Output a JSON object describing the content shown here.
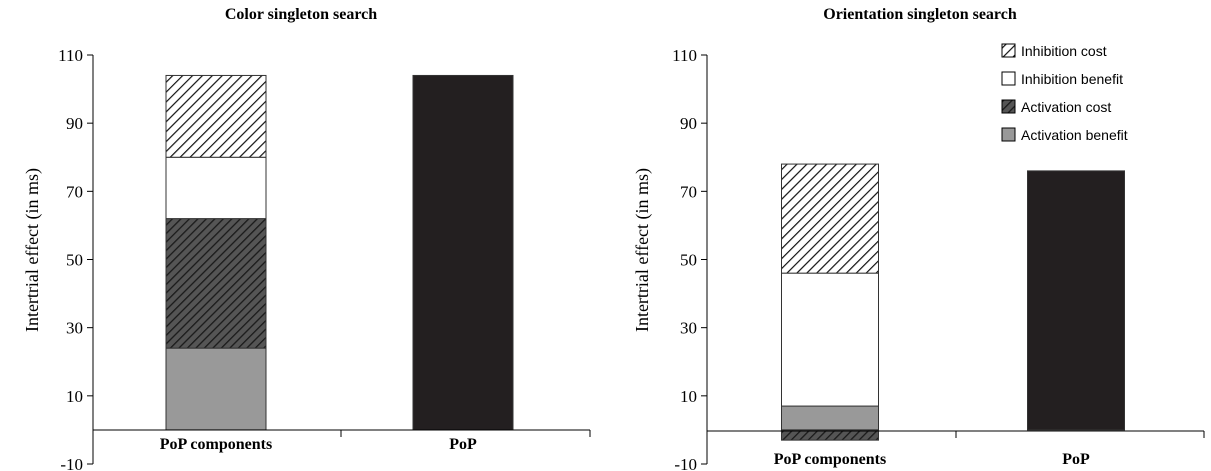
{
  "chart_data": [
    {
      "type": "bar",
      "stacked": true,
      "title": "Color singleton search",
      "ylabel": "Intertrial effect  (in ms)",
      "ylim": [
        -10,
        110
      ],
      "yticks": [
        -10,
        10,
        30,
        50,
        70,
        90,
        110
      ],
      "categories": [
        "PoP components",
        "PoP"
      ],
      "series": [
        {
          "name": "Activation benefit",
          "fill": "#999999",
          "values": [
            24,
            0
          ]
        },
        {
          "name": "Activation cost",
          "fill": "hatch-dark",
          "values": [
            38,
            0
          ]
        },
        {
          "name": "Inhibition benefit",
          "fill": "#ffffff",
          "values": [
            18,
            0
          ]
        },
        {
          "name": "Inhibition cost",
          "fill": "hatch-light",
          "values": [
            24,
            0
          ]
        },
        {
          "name": "PoP",
          "fill": "#231f20",
          "values": [
            0,
            104
          ]
        }
      ],
      "grid": false,
      "legend": "none"
    },
    {
      "type": "bar",
      "stacked": true,
      "title": "Orientation singleton search",
      "ylabel": "Intertrial effect  (in ms)",
      "ylim": [
        -10,
        110
      ],
      "yticks": [
        -10,
        10,
        30,
        50,
        70,
        90,
        110
      ],
      "categories": [
        "PoP components",
        "PoP"
      ],
      "series": [
        {
          "name": "Activation benefit",
          "fill": "#999999",
          "values": [
            7,
            0
          ]
        },
        {
          "name": "Activation cost",
          "fill": "hatch-dark",
          "values": [
            -3,
            0
          ]
        },
        {
          "name": "Inhibition benefit",
          "fill": "#ffffff",
          "values": [
            39,
            0
          ]
        },
        {
          "name": "Inhibition cost",
          "fill": "hatch-light",
          "values": [
            32,
            0
          ]
        },
        {
          "name": "PoP",
          "fill": "#231f20",
          "values": [
            0,
            76
          ]
        }
      ],
      "grid": false,
      "legend": "top-right"
    }
  ],
  "legend": {
    "items": [
      {
        "label": "Inhibition cost",
        "fill": "hatch-light"
      },
      {
        "label": "Inhibition benefit",
        "fill": "#ffffff"
      },
      {
        "label": "Activation cost",
        "fill": "hatch-dark"
      },
      {
        "label": "Activation benefit",
        "fill": "#999999"
      }
    ]
  },
  "colors": {
    "axis": "#000000",
    "bar_edge": "#333333",
    "gray": "#999999",
    "black": "#231f20",
    "hatch_dark_bg": "#555555"
  }
}
